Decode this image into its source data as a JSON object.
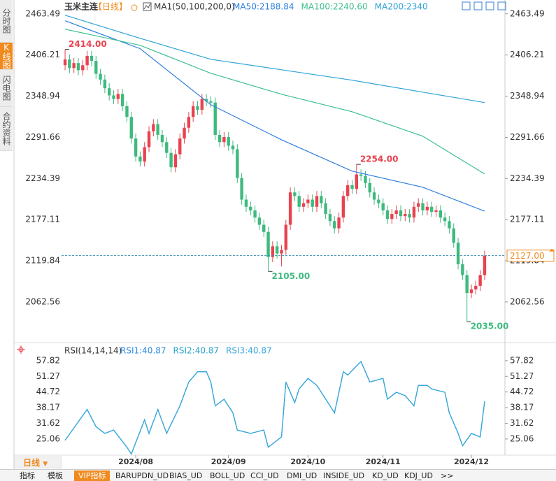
{
  "sidebar": [
    "分时图",
    "K线图",
    "闪电图",
    "合约资料"
  ],
  "period": "日线",
  "tabs": [
    "指标",
    "模板",
    "VIP指标",
    "BARUPDN_UD",
    "BIAS_UD",
    "BOLL_UD",
    "CCI_UD",
    "DMI_UD",
    "INSIDE_UD",
    "KD_UD",
    "KDJ_UD",
    ">>"
  ],
  "chart_data": [
    {
      "type": "candlestick",
      "title": "玉米主连",
      "subtitle": "【日线】",
      "indicator": "MA1(50,100,200,0)",
      "up_color": "#e8434f",
      "down_color": "#3dba7e",
      "open": [
        2392,
        2400,
        2388,
        2395,
        2385,
        2392,
        2405,
        2398,
        2380,
        2372,
        2360,
        2350,
        2345,
        2352,
        2335,
        2320,
        2290,
        2265,
        2258,
        2278,
        2300,
        2310,
        2295,
        2285,
        2270,
        2250,
        2268,
        2290,
        2305,
        2320,
        2335,
        2330,
        2345,
        2342,
        2340,
        2295,
        2285,
        2292,
        2280,
        2275,
        2235,
        2205,
        2195,
        2190,
        2180,
        2170,
        2160,
        2125,
        2140,
        2130,
        2135,
        2170,
        2215,
        2210,
        2195,
        2200,
        2205,
        2195,
        2210,
        2200,
        2185,
        2175,
        2165,
        2180,
        2210,
        2225,
        2220,
        2240,
        2238,
        2228,
        2215,
        2205,
        2200,
        2190,
        2178,
        2185,
        2190,
        2182,
        2185,
        2180,
        2195,
        2200,
        2190,
        2195,
        2188,
        2190,
        2180,
        2175,
        2165,
        2145,
        2115,
        2100,
        2075,
        2080,
        2085,
        2100
      ],
      "high": [
        2414,
        2407,
        2402,
        2402,
        2399,
        2412,
        2412,
        2405,
        2387,
        2379,
        2367,
        2357,
        2359,
        2359,
        2342,
        2327,
        2297,
        2272,
        2285,
        2307,
        2317,
        2317,
        2302,
        2292,
        2277,
        2275,
        2297,
        2312,
        2327,
        2342,
        2342,
        2352,
        2352,
        2349,
        2347,
        2302,
        2299,
        2299,
        2287,
        2282,
        2242,
        2212,
        2202,
        2197,
        2187,
        2177,
        2167,
        2147,
        2147,
        2142,
        2177,
        2222,
        2222,
        2217,
        2207,
        2212,
        2212,
        2217,
        2217,
        2207,
        2192,
        2182,
        2187,
        2217,
        2232,
        2232,
        2254,
        2247,
        2245,
        2235,
        2222,
        2212,
        2207,
        2197,
        2192,
        2197,
        2197,
        2192,
        2192,
        2202,
        2207,
        2207,
        2202,
        2202,
        2197,
        2197,
        2187,
        2182,
        2172,
        2152,
        2122,
        2107,
        2087,
        2092,
        2107,
        2134
      ],
      "low": [
        2385,
        2381,
        2381,
        2378,
        2378,
        2385,
        2391,
        2373,
        2365,
        2353,
        2343,
        2338,
        2338,
        2328,
        2313,
        2283,
        2258,
        2251,
        2251,
        2271,
        2293,
        2288,
        2278,
        2263,
        2243,
        2243,
        2261,
        2283,
        2298,
        2313,
        2323,
        2323,
        2335,
        2333,
        2288,
        2278,
        2278,
        2273,
        2268,
        2228,
        2198,
        2188,
        2183,
        2173,
        2163,
        2153,
        2105,
        2118,
        2123,
        2112,
        2128,
        2163,
        2203,
        2188,
        2188,
        2193,
        2188,
        2188,
        2193,
        2178,
        2168,
        2158,
        2158,
        2173,
        2203,
        2213,
        2213,
        2231,
        2221,
        2208,
        2198,
        2193,
        2183,
        2171,
        2171,
        2178,
        2175,
        2175,
        2173,
        2173,
        2188,
        2183,
        2183,
        2181,
        2181,
        2173,
        2168,
        2158,
        2138,
        2108,
        2093,
        2035,
        2068,
        2073,
        2078,
        2093
      ],
      "close": [
        2400,
        2388,
        2395,
        2385,
        2392,
        2405,
        2398,
        2380,
        2372,
        2360,
        2350,
        2345,
        2352,
        2335,
        2320,
        2290,
        2265,
        2258,
        2278,
        2300,
        2310,
        2295,
        2285,
        2270,
        2250,
        2268,
        2290,
        2305,
        2320,
        2335,
        2330,
        2345,
        2342,
        2340,
        2295,
        2285,
        2292,
        2280,
        2275,
        2235,
        2205,
        2195,
        2190,
        2180,
        2170,
        2160,
        2125,
        2140,
        2130,
        2135,
        2170,
        2215,
        2210,
        2195,
        2200,
        2205,
        2195,
        2210,
        2200,
        2185,
        2175,
        2165,
        2180,
        2210,
        2225,
        2220,
        2240,
        2238,
        2228,
        2215,
        2205,
        2200,
        2190,
        2178,
        2185,
        2190,
        2182,
        2185,
        2180,
        2195,
        2200,
        2190,
        2195,
        2188,
        2190,
        2180,
        2175,
        2165,
        2145,
        2115,
        2100,
        2075,
        2080,
        2085,
        2100,
        2127
      ],
      "xlim": [
        -0.8,
        99.6
      ],
      "ylim": [
        2008,
        2473
      ],
      "yticks": [
        2463.49,
        2406.21,
        2348.94,
        2291.66,
        2234.39,
        2177.11,
        2119.84,
        2062.56
      ],
      "xticks": [
        {
          "value": 16,
          "label": "2024/08"
        },
        {
          "value": 37,
          "label": "2024/09"
        },
        {
          "value": 55,
          "label": "2024/10"
        },
        {
          "value": 72,
          "label": "2024/11"
        },
        {
          "value": 92,
          "label": "2024/12"
        }
      ],
      "annotations": [
        {
          "x": 0,
          "value": 2414,
          "label": "2414.00",
          "color": "#e8434f",
          "side": "above"
        },
        {
          "x": 46,
          "value": 2105,
          "label": "2105.00",
          "color": "#3dba7e",
          "side": "below"
        },
        {
          "x": 66,
          "value": 2254,
          "label": "2254.00",
          "color": "#e8434f",
          "side": "above"
        },
        {
          "x": 91,
          "value": 2035,
          "label": "2035.00",
          "color": "#3dba7e",
          "side": "below"
        }
      ],
      "last_price": {
        "value": 2127,
        "label": "2127.00"
      },
      "series": [
        {
          "name": "MA50",
          "legend": "MA50:2188.84",
          "color": "#2f7fe0",
          "x": [
            0,
            17,
            33,
            49,
            65,
            81,
            95
          ],
          "values": [
            2453.8,
            2415,
            2337,
            2288.3,
            2244.6,
            2222.2,
            2188.84
          ]
        },
        {
          "name": "MA100",
          "legend": "MA100:2240.60",
          "color": "#3cbf8c",
          "x": [
            0,
            17,
            33,
            49,
            65,
            81,
            95
          ],
          "values": [
            2442.1,
            2419.7,
            2380.8,
            2351.6,
            2327.3,
            2293.2,
            2240.6
          ]
        },
        {
          "name": "MA200",
          "legend": "MA200:2340",
          "color": "#2fa3d6",
          "x": [
            0,
            17,
            33,
            49,
            65,
            81,
            95
          ],
          "values": [
            2461.5,
            2429.4,
            2400.2,
            2385.6,
            2371.1,
            2354.5,
            2340
          ]
        }
      ]
    },
    {
      "type": "line",
      "title": "RSI(14,14,14)",
      "xlim": [
        -0.8,
        99.6
      ],
      "ylim": [
        18,
        61
      ],
      "yticks": [
        57.82,
        51.27,
        44.72,
        38.17,
        31.62,
        25.06
      ],
      "series": [
        {
          "name": "RSI1",
          "legend": "RSI1:40.87",
          "color": "#2f8be6",
          "x": [
            0,
            5,
            7,
            9,
            11,
            14,
            15,
            18,
            19,
            21,
            23,
            26,
            28,
            30,
            32,
            33,
            34,
            36,
            38,
            39,
            42,
            45,
            46,
            49,
            50,
            52,
            53,
            55,
            57,
            60,
            61,
            63,
            64,
            67,
            68,
            69,
            72,
            73,
            75,
            77,
            79,
            80,
            82,
            83,
            86,
            87,
            89,
            90,
            92,
            94,
            95
          ],
          "values": [
            24.5,
            37.4,
            30.2,
            27.4,
            28.8,
            21.6,
            18.8,
            33.1,
            27.4,
            37.4,
            27.4,
            38.9,
            48.9,
            53.2,
            53.2,
            48.9,
            38.9,
            41.7,
            36.0,
            28.8,
            27.4,
            28.8,
            21.6,
            25.9,
            48.9,
            40.3,
            46.0,
            50.4,
            47.5,
            38.9,
            36.0,
            53.2,
            51.8,
            57.5,
            53.2,
            48.9,
            50.4,
            41.7,
            44.6,
            43.2,
            38.9,
            47.5,
            47.5,
            46.0,
            44.6,
            36.0,
            27.4,
            22.2,
            27.4,
            25.9,
            40.87
          ]
        },
        {
          "name": "RSI2",
          "legend": "RSI2:40.87",
          "color": "#2aa3c8",
          "x": [
            0,
            5,
            7,
            9,
            11,
            14,
            15,
            18,
            19,
            21,
            23,
            26,
            28,
            30,
            32,
            33,
            34,
            36,
            38,
            39,
            42,
            45,
            46,
            49,
            50,
            52,
            53,
            55,
            57,
            60,
            61,
            63,
            64,
            67,
            68,
            69,
            72,
            73,
            75,
            77,
            79,
            80,
            82,
            83,
            86,
            87,
            89,
            90,
            92,
            94,
            95
          ],
          "values": [
            24.5,
            37.4,
            30.2,
            27.4,
            28.8,
            21.6,
            18.8,
            33.1,
            27.4,
            37.4,
            27.4,
            38.9,
            48.9,
            53.2,
            53.2,
            48.9,
            38.9,
            41.7,
            36.0,
            28.8,
            27.4,
            28.8,
            21.6,
            25.9,
            48.9,
            40.3,
            46.0,
            50.4,
            47.5,
            38.9,
            36.0,
            53.2,
            51.8,
            57.5,
            53.2,
            48.9,
            50.4,
            41.7,
            44.6,
            43.2,
            38.9,
            47.5,
            47.5,
            46.0,
            44.6,
            36.0,
            27.4,
            22.2,
            27.4,
            25.9,
            40.87
          ]
        },
        {
          "name": "RSI3",
          "legend": "RSI3:40.87",
          "color": "#3aa9dc",
          "x": [
            0,
            5,
            7,
            9,
            11,
            14,
            15,
            18,
            19,
            21,
            23,
            26,
            28,
            30,
            32,
            33,
            34,
            36,
            38,
            39,
            42,
            45,
            46,
            49,
            50,
            52,
            53,
            55,
            57,
            60,
            61,
            63,
            64,
            67,
            68,
            69,
            72,
            73,
            75,
            77,
            79,
            80,
            82,
            83,
            86,
            87,
            89,
            90,
            92,
            94,
            95
          ],
          "values": [
            24.5,
            37.4,
            30.2,
            27.4,
            28.8,
            21.6,
            18.8,
            33.1,
            27.4,
            37.4,
            27.4,
            38.9,
            48.9,
            53.2,
            53.2,
            48.9,
            38.9,
            41.7,
            36.0,
            28.8,
            27.4,
            28.8,
            21.6,
            25.9,
            48.9,
            40.3,
            46.0,
            50.4,
            47.5,
            38.9,
            36.0,
            53.2,
            51.8,
            57.5,
            53.2,
            48.9,
            50.4,
            41.7,
            44.6,
            43.2,
            38.9,
            47.5,
            47.5,
            46.0,
            44.6,
            36.0,
            27.4,
            22.2,
            27.4,
            25.9,
            40.87
          ]
        }
      ]
    }
  ]
}
